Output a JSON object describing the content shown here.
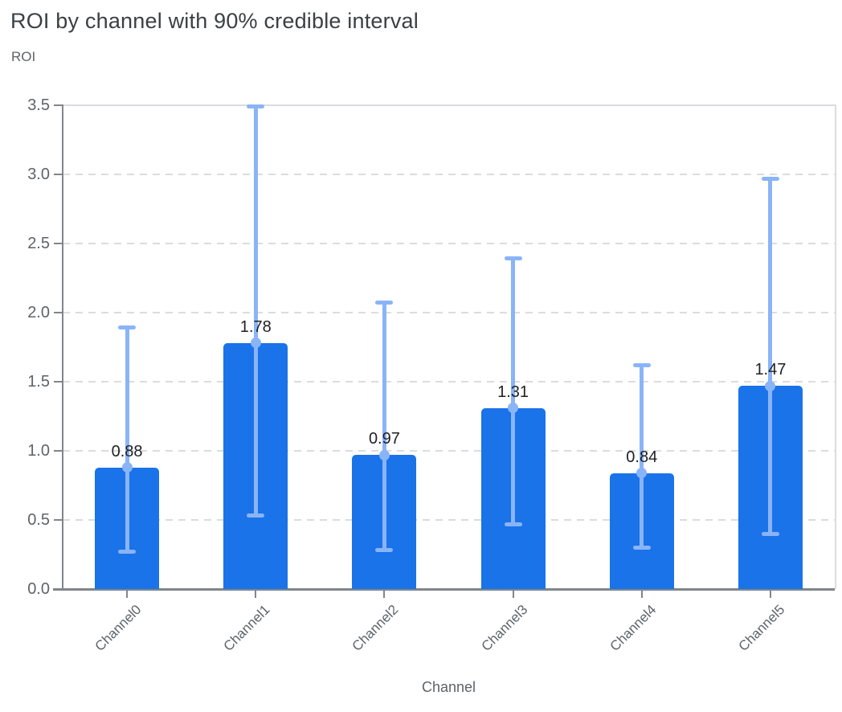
{
  "chart_data": {
    "type": "bar",
    "title": "ROI by channel with 90% credible interval",
    "ylabel": "ROI",
    "xlabel": "Channel",
    "categories": [
      "Channel0",
      "Channel1",
      "Channel2",
      "Channel3",
      "Channel4",
      "Channel5"
    ],
    "values": [
      0.88,
      1.78,
      0.97,
      1.31,
      0.84,
      1.47
    ],
    "value_labels": [
      "0.88",
      "1.78",
      "0.97",
      "1.31",
      "0.84",
      "1.47"
    ],
    "error_interval_label": "90% credible interval",
    "error_low": [
      0.27,
      0.53,
      0.28,
      0.47,
      0.3,
      0.4
    ],
    "error_high": [
      1.89,
      3.49,
      2.07,
      2.39,
      1.62,
      2.97
    ],
    "ylim": [
      0,
      3.5
    ],
    "yticks": [
      "0.0",
      "0.5",
      "1.0",
      "1.5",
      "2.0",
      "2.5",
      "3.0",
      "3.5"
    ],
    "grid": "horizontal-dashed, top and right plot border solid, no legend",
    "colors": {
      "bar": "#1a73e8",
      "error_bar": "#8ab4f8",
      "gridline": "#dadce0",
      "axis": "#80868b",
      "title": "#3c4043",
      "axis_title": "#5f6368",
      "tick_label": "#5f6368",
      "value_label": "#202124",
      "background": "#ffffff"
    }
  }
}
